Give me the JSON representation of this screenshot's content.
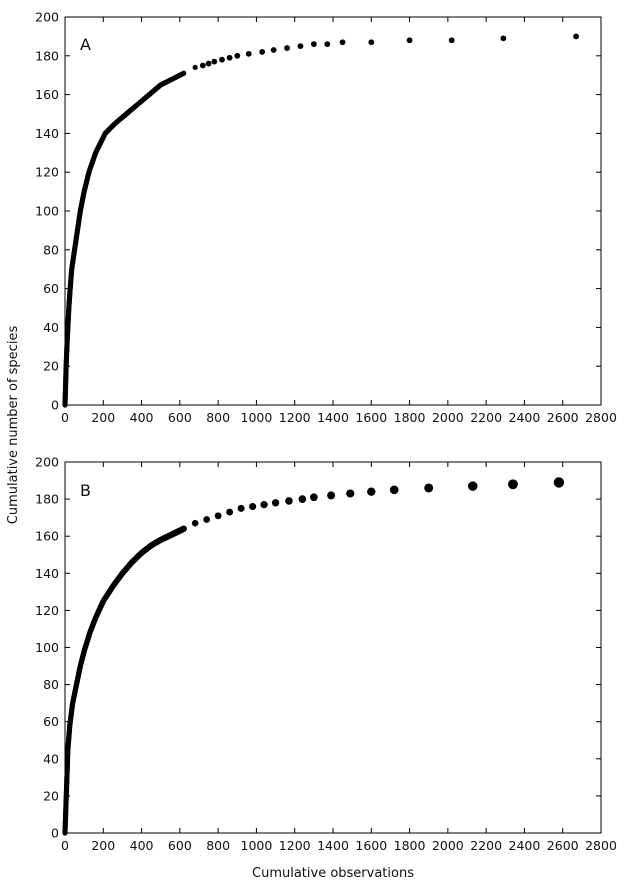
{
  "chart_data": [
    {
      "type": "scatter",
      "panel_label": "A",
      "xlabel": "",
      "ylabel": "",
      "xlim": [
        0,
        2800
      ],
      "ylim": [
        0,
        200
      ],
      "xticks": [
        "0",
        "200",
        "400",
        "600",
        "800",
        "1000",
        "1200",
        "1400",
        "1600",
        "1800",
        "2000",
        "2200",
        "2400",
        "2600",
        "2800"
      ],
      "yticks": [
        "0",
        "20",
        "40",
        "60",
        "80",
        "100",
        "120",
        "140",
        "160",
        "180",
        "200"
      ],
      "grid": false,
      "marker_color": "#000000",
      "marker_size": "small",
      "series": [
        {
          "points": [
            [
              0,
              0
            ],
            [
              3,
              10
            ],
            [
              6,
              20
            ],
            [
              10,
              30
            ],
            [
              15,
              40
            ],
            [
              20,
              50
            ],
            [
              27,
              60
            ],
            [
              35,
              70
            ],
            [
              50,
              80
            ],
            [
              65,
              90
            ],
            [
              80,
              100
            ],
            [
              100,
              110
            ],
            [
              125,
              120
            ],
            [
              160,
              130
            ],
            [
              210,
              140
            ],
            [
              260,
              145
            ],
            [
              320,
              150
            ],
            [
              380,
              155
            ],
            [
              440,
              160
            ],
            [
              500,
              165
            ],
            [
              560,
              168
            ],
            [
              620,
              171
            ],
            [
              680,
              174
            ],
            [
              720,
              175
            ],
            [
              750,
              176
            ],
            [
              780,
              177
            ],
            [
              820,
              178
            ],
            [
              860,
              179
            ],
            [
              900,
              180
            ],
            [
              960,
              181
            ],
            [
              1030,
              182
            ],
            [
              1090,
              183
            ],
            [
              1160,
              184
            ],
            [
              1230,
              185
            ],
            [
              1300,
              186
            ],
            [
              1370,
              186
            ],
            [
              1450,
              187
            ],
            [
              1600,
              187
            ],
            [
              1800,
              188
            ],
            [
              2020,
              188
            ],
            [
              2290,
              189
            ],
            [
              2670,
              190
            ]
          ]
        }
      ]
    },
    {
      "type": "scatter",
      "panel_label": "B",
      "xlabel": "Cumulative observations",
      "ylabel": "",
      "xlim": [
        0,
        2800
      ],
      "ylim": [
        0,
        200
      ],
      "xticks": [
        "0",
        "200",
        "400",
        "600",
        "800",
        "1000",
        "1200",
        "1400",
        "1600",
        "1800",
        "2000",
        "2200",
        "2400",
        "2600",
        "2800"
      ],
      "yticks": [
        "0",
        "20",
        "40",
        "60",
        "80",
        "100",
        "120",
        "140",
        "160",
        "180",
        "200"
      ],
      "grid": false,
      "marker_color": "#000000",
      "marker_size": "growing",
      "series": [
        {
          "points": [
            [
              0,
              0
            ],
            [
              5,
              15
            ],
            [
              10,
              30
            ],
            [
              15,
              45
            ],
            [
              25,
              58
            ],
            [
              40,
              70
            ],
            [
              60,
              80
            ],
            [
              80,
              90
            ],
            [
              100,
              98
            ],
            [
              130,
              108
            ],
            [
              160,
              116
            ],
            [
              200,
              125
            ],
            [
              250,
              133
            ],
            [
              300,
              140
            ],
            [
              350,
              146
            ],
            [
              400,
              151
            ],
            [
              450,
              155
            ],
            [
              500,
              158
            ],
            [
              560,
              161
            ],
            [
              620,
              164
            ],
            [
              680,
              167
            ],
            [
              740,
              169
            ],
            [
              800,
              171
            ],
            [
              860,
              173
            ],
            [
              920,
              175
            ],
            [
              980,
              176
            ],
            [
              1040,
              177
            ],
            [
              1100,
              178
            ],
            [
              1170,
              179
            ],
            [
              1240,
              180
            ],
            [
              1300,
              181
            ],
            [
              1390,
              182
            ],
            [
              1490,
              183
            ],
            [
              1600,
              184
            ],
            [
              1720,
              185
            ],
            [
              1900,
              186
            ],
            [
              2130,
              187
            ],
            [
              2340,
              188
            ],
            [
              2580,
              189
            ]
          ]
        }
      ]
    }
  ],
  "shared": {
    "ylabel": "Cumulative number of species"
  }
}
